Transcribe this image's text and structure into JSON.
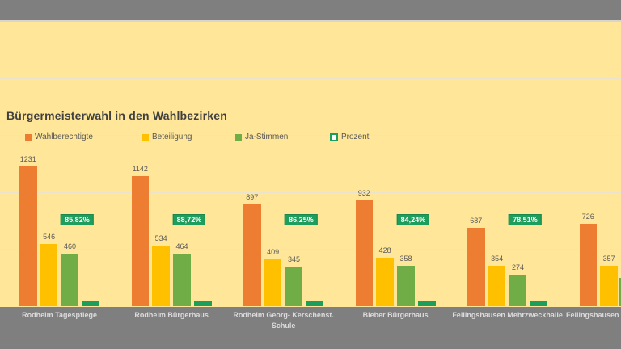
{
  "page": {
    "background_color": "#FFE699",
    "band_color": "#7F7F7F"
  },
  "chart_data": {
    "type": "bar",
    "title": "Bürgermeisterwahl in den Wahlbezirken",
    "legend_position": "top",
    "grid": true,
    "value_axis": {
      "labels_visible": false,
      "implied_gridline_values": [
        500,
        1000,
        1500,
        2000
      ]
    },
    "categories": [
      "Rodheim Tagespflege",
      "Rodheim Bürgerhaus",
      "Rodheim Georg- Kerschenst. Schule",
      "Bieber Bürgerhaus",
      "Fellingshausen Mehrzweckhalle",
      "Fellingshausen G"
    ],
    "cropped_right_group_partial": true,
    "legend": [
      {
        "label": "Wahlberechtigte",
        "color": "#ED7D31",
        "marker": "filled-square"
      },
      {
        "label": "Beteiligung",
        "color": "#FFC000",
        "marker": "filled-square"
      },
      {
        "label": "Ja-Stimmen",
        "color": "#70AD47",
        "marker": "filled-square"
      },
      {
        "label": "Prozent",
        "color": "#1E9E5C",
        "marker": "outlined-square"
      }
    ],
    "series": [
      {
        "name": "Wahlberechtigte",
        "color": "#ED7D31",
        "values": [
          1231,
          1142,
          897,
          932,
          687,
          726
        ]
      },
      {
        "name": "Beteiligung",
        "color": "#FFC000",
        "values": [
          546,
          534,
          409,
          428,
          354,
          357
        ]
      },
      {
        "name": "Ja-Stimmen",
        "color": "#70AD47",
        "values": [
          460,
          464,
          345,
          358,
          274,
          null
        ]
      },
      {
        "name": "Prozent",
        "color": "#1E9E5C",
        "values_pct": [
          85.82,
          88.72,
          86.25,
          84.24,
          78.51,
          null
        ],
        "labels": [
          "85,82%",
          "88,72%",
          "86,25%",
          "84,24%",
          "78,51%",
          null
        ]
      }
    ]
  }
}
